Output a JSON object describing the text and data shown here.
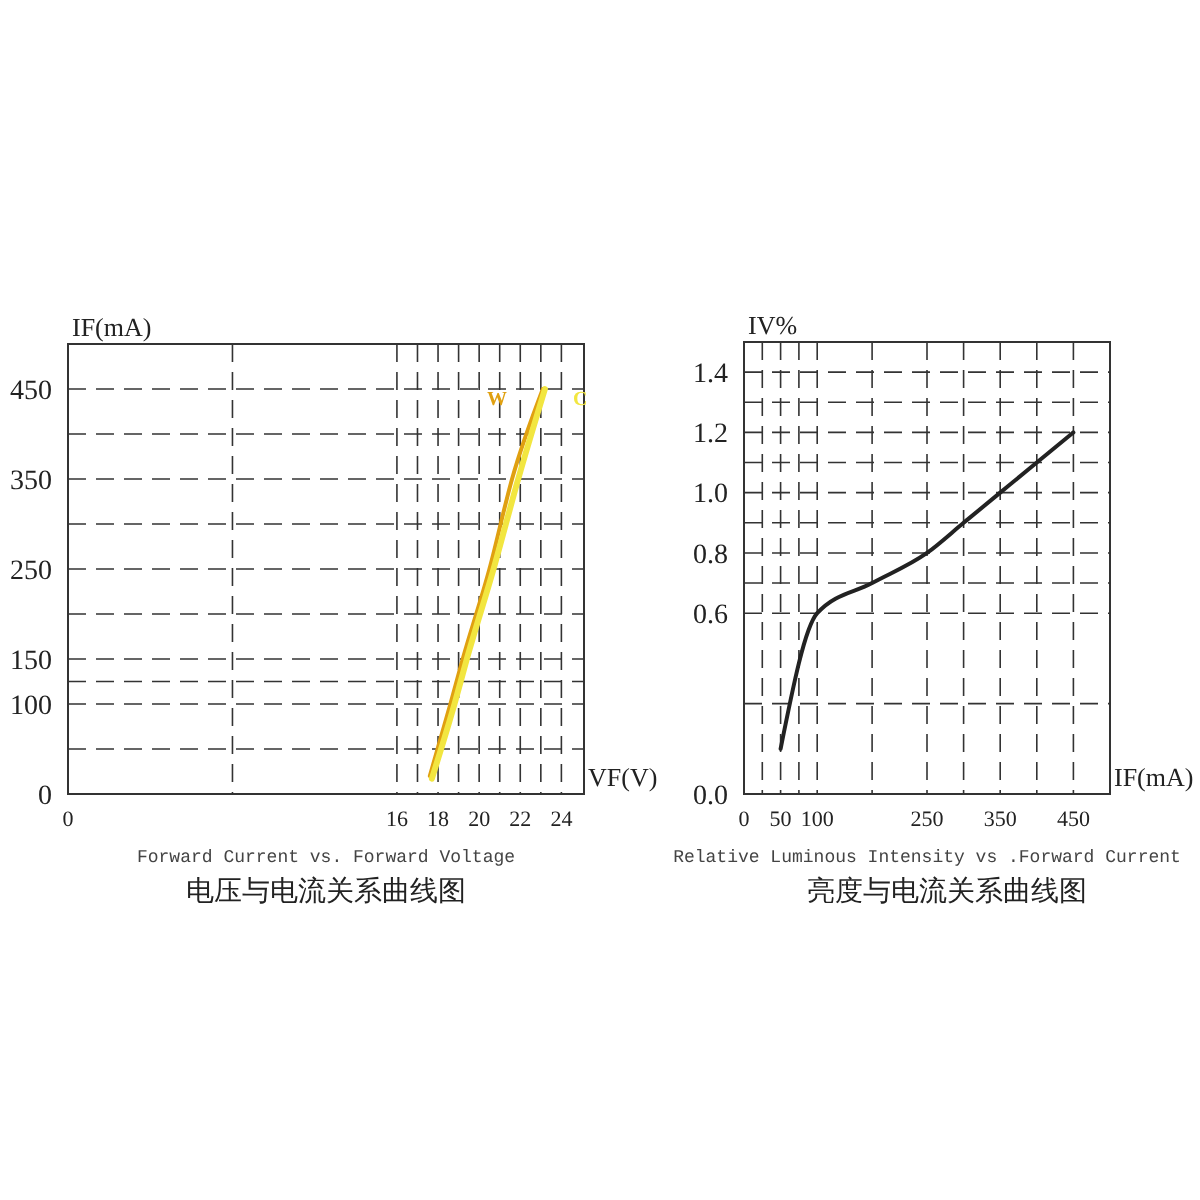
{
  "chart_data": [
    {
      "type": "line",
      "title": "电压与电流关系曲线图",
      "subtitle": "Forward Current vs. Forward Voltage",
      "xlabel": "VF(V)",
      "ylabel": "IF(mA)",
      "xlim": [
        0,
        25.1
      ],
      "xticks": [
        0,
        16,
        18,
        20,
        22,
        24
      ],
      "ylim": [
        0,
        500
      ],
      "yticks": [
        0,
        100,
        150,
        250,
        350,
        450
      ],
      "grid": true,
      "series": [
        {
          "name": "W",
          "color": "#e0a010",
          "x": [
            17.6,
            18.6,
            19.2,
            20.5,
            21.6,
            23.1
          ],
          "values": [
            20,
            100,
            150,
            250,
            350,
            450
          ]
        },
        {
          "name": "C",
          "color": "#f2e640",
          "x": [
            17.7,
            18.8,
            19.4,
            20.7,
            21.9,
            23.2
          ],
          "values": [
            17,
            100,
            150,
            250,
            350,
            450
          ]
        }
      ]
    },
    {
      "type": "line",
      "title": "亮度与电流关系曲线图",
      "subtitle": "Relative Luminous Intensity vs .Forward Current",
      "xlabel": "IF(mA)",
      "ylabel": "IV%",
      "xlim": [
        0,
        500
      ],
      "xticks": [
        0,
        50,
        100,
        250,
        350,
        450
      ],
      "ylim": [
        0,
        1.5
      ],
      "yticks": [
        {
          "value": 0,
          "label": "0.0"
        },
        0.6,
        0.8,
        {
          "value": 1,
          "label": "1.0"
        },
        1.2,
        1.4
      ],
      "grid": true,
      "series": [
        {
          "color": "#222222",
          "x": [
            50,
            100,
            175,
            250,
            300,
            350,
            400,
            450
          ],
          "values": [
            0.15,
            0.6,
            0.7,
            0.8,
            0.9,
            1.0,
            1.1,
            1.2
          ]
        }
      ]
    }
  ]
}
